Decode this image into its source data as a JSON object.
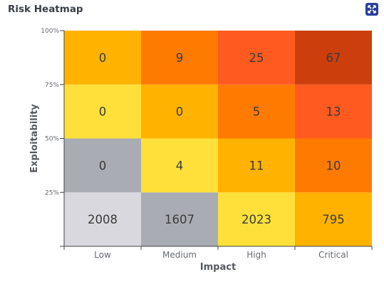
{
  "widget": {
    "title": "Risk Heatmap",
    "expand_icon": "expand-icon"
  },
  "chart_data": {
    "type": "heatmap",
    "title": "Risk Heatmap",
    "xlabel": "Impact",
    "ylabel": "Exploitability",
    "x_categories": [
      "Low",
      "Medium",
      "High",
      "Critical"
    ],
    "y_ticks": [
      "25%",
      "50%",
      "75%",
      "100%"
    ],
    "y_bands": [
      "0-25%",
      "25-50%",
      "50-75%",
      "75-100%"
    ],
    "values": [
      [
        2008,
        1607,
        2023,
        795
      ],
      [
        0,
        4,
        11,
        10
      ],
      [
        0,
        0,
        5,
        13
      ],
      [
        0,
        9,
        25,
        67
      ]
    ],
    "cell_colors": [
      [
        "#d8d8de",
        "#a9acb3",
        "#ffe03a",
        "#ffb300"
      ],
      [
        "#a9acb3",
        "#ffe03a",
        "#ffb300",
        "#ff7a00"
      ],
      [
        "#ffe03a",
        "#ffb300",
        "#ff7a00",
        "#ff5a1f"
      ],
      [
        "#ffb300",
        "#ff7a00",
        "#ff5a1f",
        "#cc3f0c"
      ]
    ],
    "grid": false,
    "legend": "none"
  }
}
